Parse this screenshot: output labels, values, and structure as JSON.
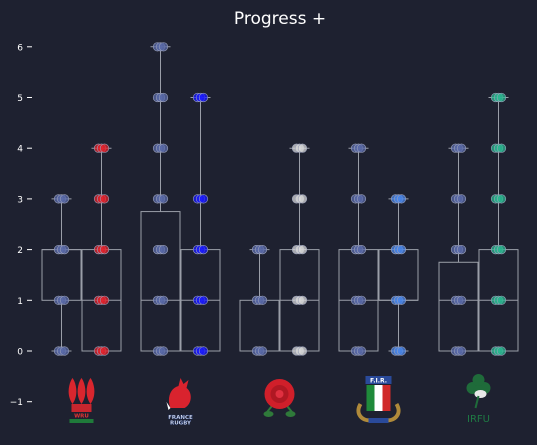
{
  "title": "Progress +",
  "colors": {
    "background": "#1e2130",
    "box_line": "#9a9ea8",
    "text": "#ffffff",
    "point_edge": "#9aa0b8"
  },
  "chart_data": {
    "type": "box",
    "title": "Progress +",
    "ylim": [
      -1,
      6
    ],
    "yticks": [
      -1,
      0,
      1,
      2,
      3,
      4,
      5,
      6
    ],
    "grid": false,
    "legend": "none (team logos below each pair)",
    "teams": [
      {
        "name": "Wales",
        "logo": "wales-feathers-logo",
        "logo_text": "WRU",
        "series": [
          {
            "color": "#5a6aa8",
            "q1": 1,
            "median": 2,
            "q3": 2,
            "whisker_low": 0,
            "whisker_high": 3,
            "points": [
              0,
              1,
              2,
              3
            ]
          },
          {
            "color": "#e3222b",
            "q1": 0,
            "median": 1,
            "q3": 2,
            "whisker_low": 0,
            "whisker_high": 4,
            "points": [
              0,
              1,
              2,
              3,
              4
            ]
          }
        ]
      },
      {
        "name": "France",
        "logo": "france-rooster-logo",
        "logo_text": "FRANCE RUGBY",
        "series": [
          {
            "color": "#5a6aa8",
            "q1": 0,
            "median": 1,
            "q3": 2.75,
            "whisker_low": 0,
            "whisker_high": 6,
            "points": [
              0,
              1,
              2,
              3,
              4,
              5,
              6
            ]
          },
          {
            "color": "#1a1aff",
            "q1": 0,
            "median": 1,
            "q3": 2,
            "whisker_low": 0,
            "whisker_high": 5,
            "points": [
              0,
              1,
              2,
              3,
              5
            ]
          }
        ]
      },
      {
        "name": "England",
        "logo": "england-rose-logo",
        "logo_text": "",
        "series": [
          {
            "color": "#5a6aa8",
            "q1": 0,
            "median": 0,
            "q3": 1,
            "whisker_low": 0,
            "whisker_high": 2,
            "points": [
              0,
              1,
              2
            ]
          },
          {
            "color": "#d8d8d8",
            "q1": 0,
            "median": 1,
            "q3": 2,
            "whisker_low": 0,
            "whisker_high": 4,
            "points": [
              0,
              1,
              2,
              3,
              4
            ]
          }
        ]
      },
      {
        "name": "Italy",
        "logo": "italy-fir-shield-logo",
        "logo_text": "F.I.R.",
        "series": [
          {
            "color": "#5a6aa8",
            "q1": 0,
            "median": 1,
            "q3": 2,
            "whisker_low": 0,
            "whisker_high": 4,
            "points": [
              0,
              1,
              2,
              3,
              4
            ]
          },
          {
            "color": "#4a86e8",
            "q1": 1,
            "median": 1,
            "q3": 2,
            "whisker_low": 0,
            "whisker_high": 3,
            "points": [
              0,
              1,
              2,
              3
            ]
          }
        ]
      },
      {
        "name": "Ireland",
        "logo": "ireland-shamrock-logo",
        "logo_text": "IRFU",
        "series": [
          {
            "color": "#5a6aa8",
            "q1": 0,
            "median": 1,
            "q3": 1.75,
            "whisker_low": 0,
            "whisker_high": 4,
            "points": [
              0,
              1,
              2,
              3,
              4
            ]
          },
          {
            "color": "#2ab78f",
            "q1": 0,
            "median": 1,
            "q3": 2,
            "whisker_low": 0,
            "whisker_high": 5,
            "points": [
              0,
              1,
              2,
              3,
              4,
              5
            ]
          }
        ]
      }
    ]
  }
}
